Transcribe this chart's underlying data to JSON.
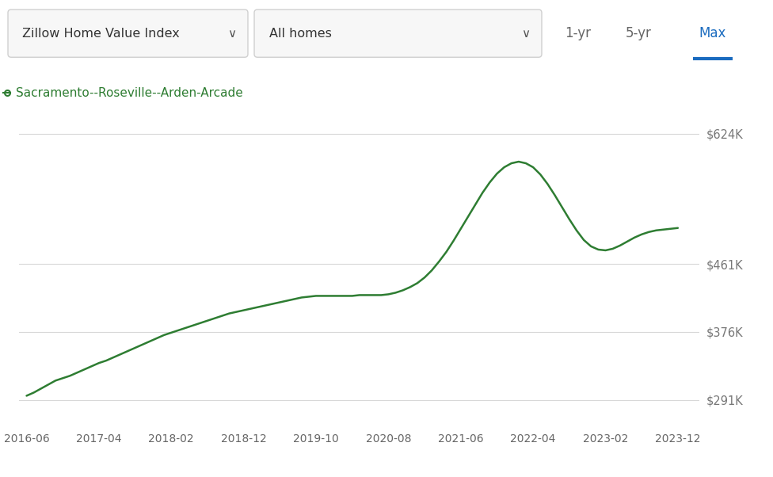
{
  "legend_label": "Sacramento--Roseville--Arden-Arcade",
  "legend_color": "#2e7d32",
  "line_color": "#2e7d32",
  "background_color": "#ffffff",
  "grid_color": "#d8d8d8",
  "x_labels": [
    "2016-06",
    "2017-04",
    "2018-02",
    "2018-12",
    "2019-10",
    "2020-08",
    "2021-06",
    "2022-04",
    "2023-02",
    "2023-12"
  ],
  "y_ticks": [
    291000,
    376000,
    461000,
    624000
  ],
  "y_tick_labels": [
    "$291K",
    "$376K",
    "$461K",
    "$624K"
  ],
  "ylim": [
    260000,
    660000
  ],
  "header_left1": "Zillow Home Value Index",
  "header_left2": "All homes",
  "header_right": [
    "1-yr",
    "5-yr",
    "Max"
  ],
  "header_active": "Max",
  "header_active_color": "#1a6bbf",
  "data_x": [
    0,
    1,
    2,
    3,
    4,
    5,
    6,
    7,
    8,
    9,
    10,
    11,
    12,
    13,
    14,
    15,
    16,
    17,
    18,
    19,
    20,
    21,
    22,
    23,
    24,
    25,
    26,
    27,
    28,
    29,
    30,
    31,
    32,
    33,
    34,
    35,
    36,
    37,
    38,
    39,
    40,
    41,
    42,
    43,
    44,
    45,
    46,
    47,
    48,
    49,
    50,
    51,
    52,
    53,
    54,
    55,
    56,
    57,
    58,
    59,
    60,
    61,
    62,
    63,
    64,
    65,
    66,
    67,
    68,
    69,
    70,
    71,
    72,
    73,
    74,
    75,
    76,
    77,
    78,
    79,
    80,
    81,
    82,
    83,
    84,
    85,
    86,
    87,
    88,
    89,
    90
  ],
  "data_y": [
    296000,
    300000,
    305000,
    310000,
    315000,
    318000,
    321000,
    325000,
    329000,
    333000,
    337000,
    340000,
    344000,
    348000,
    352000,
    356000,
    360000,
    364000,
    368000,
    372000,
    375000,
    378000,
    381000,
    384000,
    387000,
    390000,
    393000,
    396000,
    399000,
    401000,
    403000,
    405000,
    407000,
    409000,
    411000,
    413000,
    415000,
    417000,
    419000,
    420000,
    421000,
    421000,
    421000,
    421000,
    421000,
    421000,
    422000,
    422000,
    422000,
    422000,
    423000,
    425000,
    428000,
    432000,
    437000,
    444000,
    453000,
    464000,
    476000,
    490000,
    505000,
    520000,
    535000,
    550000,
    563000,
    574000,
    582000,
    587000,
    589000,
    587000,
    582000,
    573000,
    561000,
    547000,
    532000,
    517000,
    503000,
    491000,
    483000,
    479000,
    478000,
    480000,
    484000,
    489000,
    494000,
    498000,
    501000,
    503000,
    504000,
    505000,
    506000
  ]
}
